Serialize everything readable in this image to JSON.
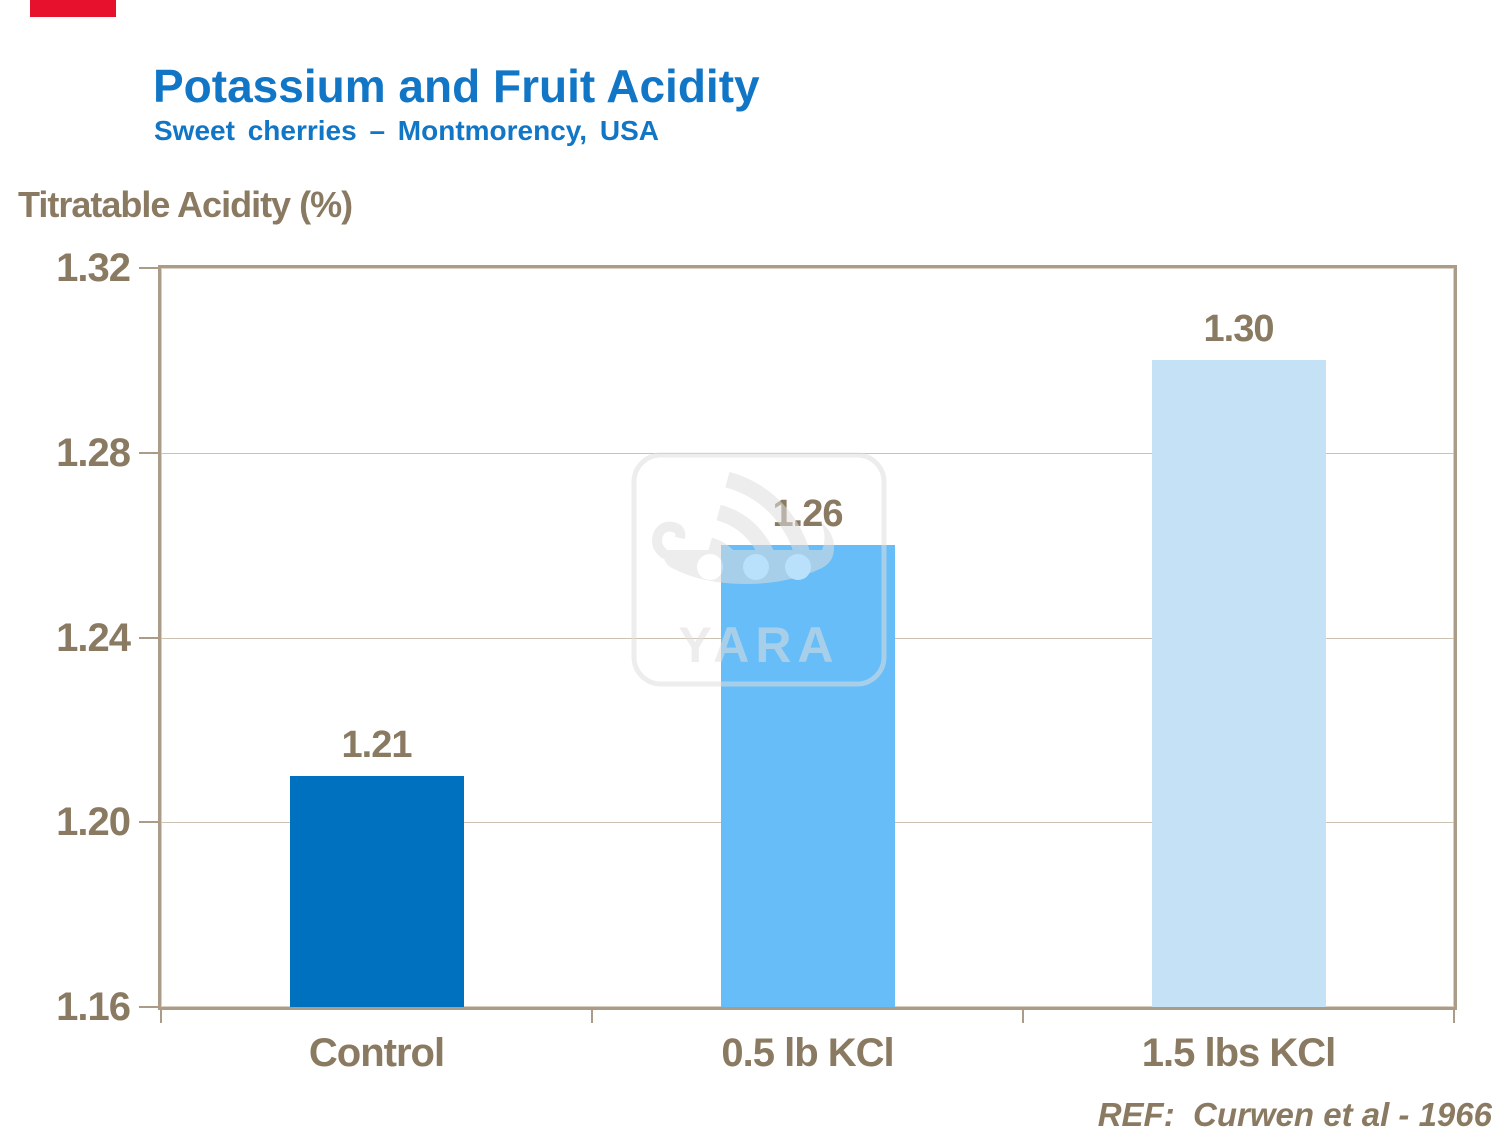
{
  "header": {
    "title": "Potassium and Fruit Acidity",
    "subtitle": "Sweet cherries – Montmorency, USA",
    "title_color": "#1276C6"
  },
  "accent_bar": {
    "color": "#E8112D"
  },
  "chart_data": {
    "type": "bar",
    "title": "Potassium and Fruit Acidity",
    "subtitle": "Sweet cherries – Montmorency, USA",
    "ylabel": "Titratable Acidity (%)",
    "xlabel": "",
    "categories": [
      "Control",
      "0.5 lb KCl",
      "1.5 lbs KCl"
    ],
    "values": [
      1.21,
      1.26,
      1.3
    ],
    "data_labels": [
      "1.21",
      "1.26",
      "1.30"
    ],
    "bar_colors": [
      "#0071BE",
      "#66BDF7",
      "#C4E1F6"
    ],
    "ylim": [
      1.16,
      1.32
    ],
    "ytick_labels": [
      "1.16",
      "1.20",
      "1.24",
      "1.28",
      "1.32"
    ],
    "grid": true,
    "legend_position": "none",
    "text_color": "#8A7A62",
    "axis_color": "#AB9C8A",
    "gridline_color": "#CCC1B2"
  },
  "watermark": {
    "text": "YARA",
    "color": "#DFDFDF"
  },
  "footer": {
    "reference": "REF:  Curwen et al - 1966"
  }
}
